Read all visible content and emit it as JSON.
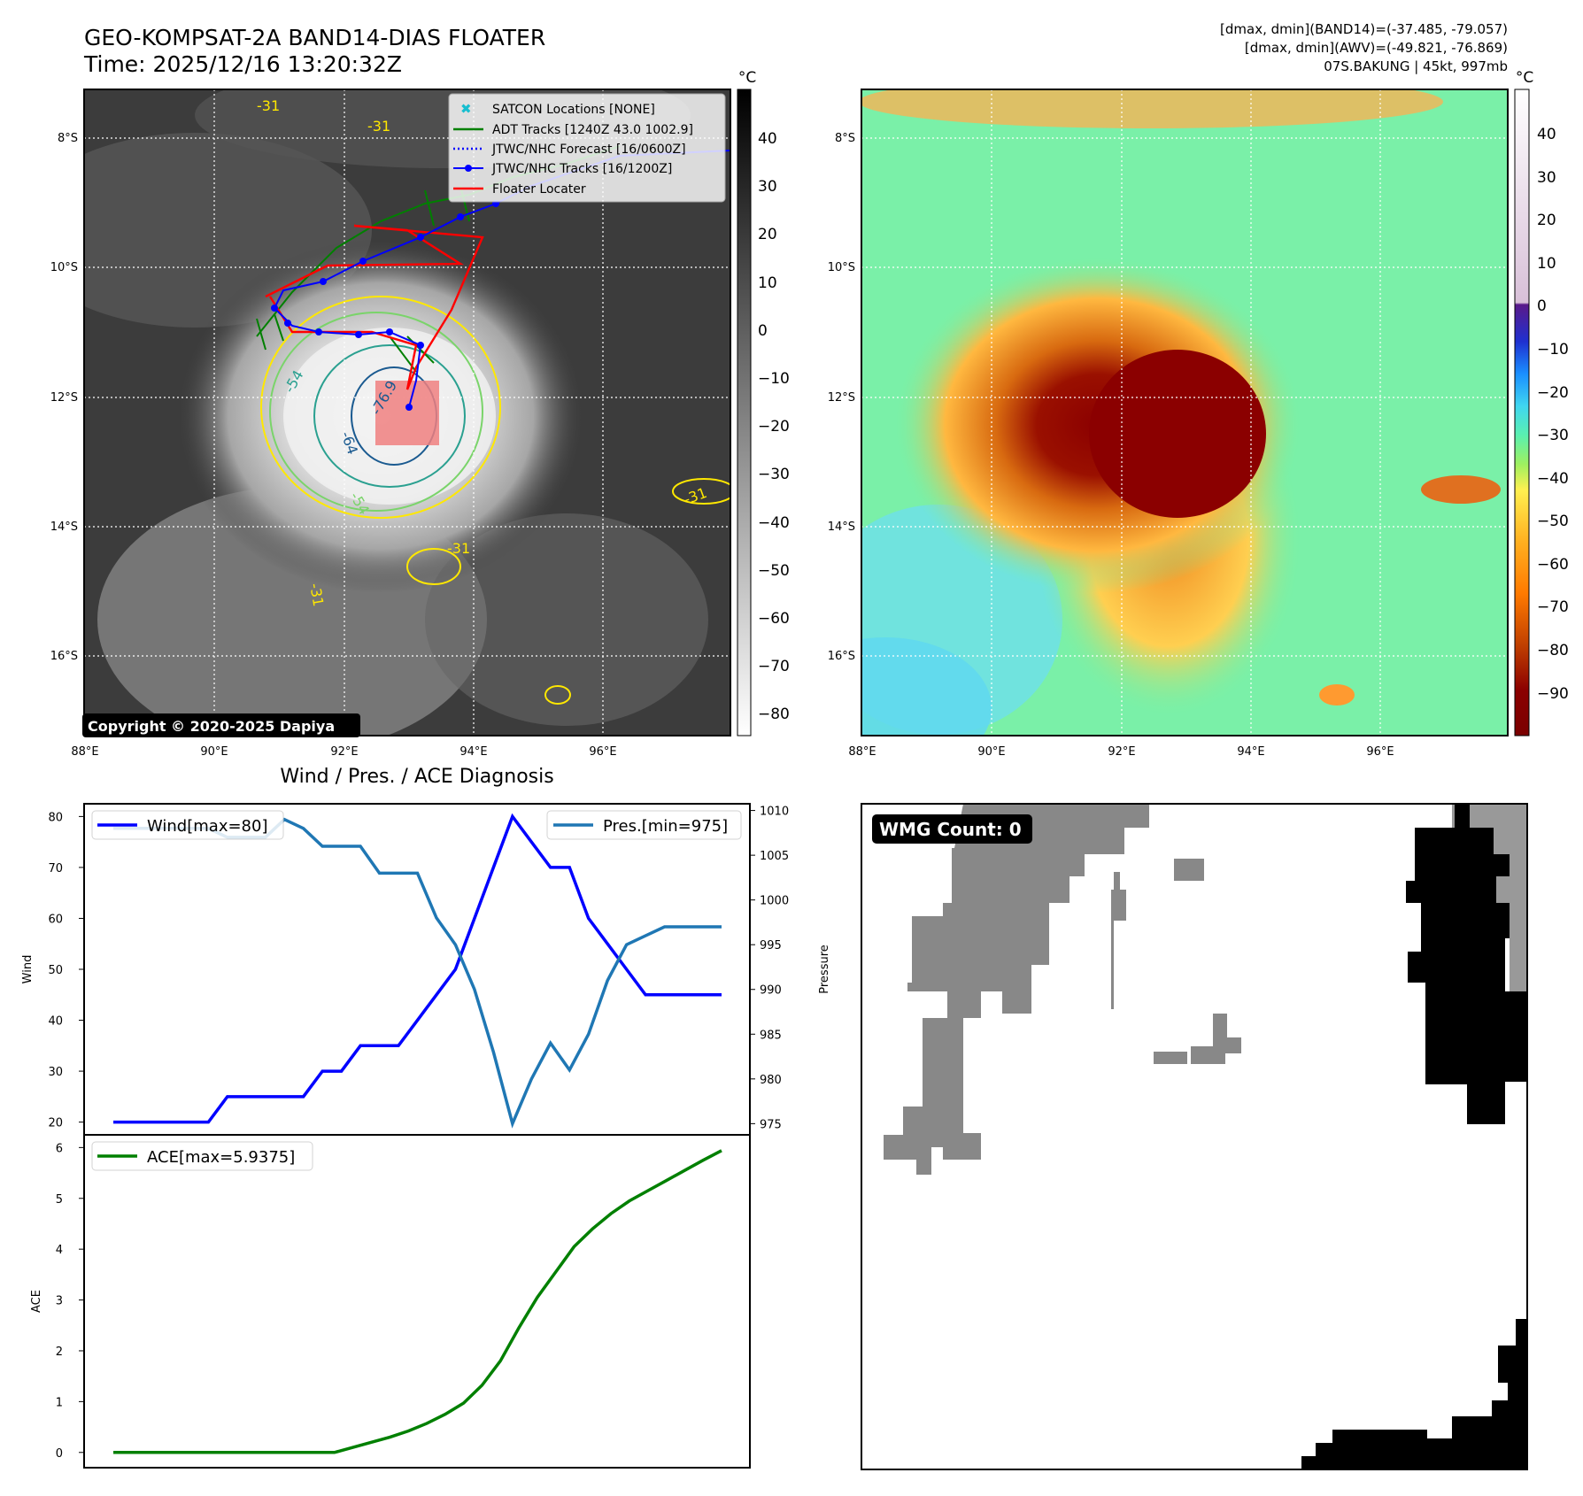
{
  "header": {
    "title_line1": "GEO-KOMPSAT-2A BAND14-DIAS FLOATER",
    "title_line2": "Time: 2025/12/16 13:20:32Z",
    "stats_band14": "[dmax, dmin](BAND14)=(-37.485, -79.057)",
    "stats_awv": "[dmax, dmin](AWV)=(-49.821, -76.869)",
    "storm": "07S.BAKUNG | 45kt, 997mb"
  },
  "ir_panel": {
    "unit": "°C",
    "lat_labels": [
      "8°S",
      "10°S",
      "12°S",
      "14°S",
      "16°S"
    ],
    "lon_labels": [
      "88°E",
      "90°E",
      "92°E",
      "94°E",
      "96°E"
    ],
    "colorbar_ticks": [
      "40",
      "30",
      "20",
      "10",
      "0",
      "−10",
      "−20",
      "−30",
      "−40",
      "−50",
      "−60",
      "−70",
      "−80"
    ],
    "copyright": "Copyright © 2020-2025 Dapiya",
    "contour_labels": [
      "-31",
      "-31",
      "-54",
      "-64",
      "-54",
      "-31",
      "-31",
      "-31",
      "-76.9"
    ],
    "legend": [
      {
        "label": "SATCON Locations [NONE]",
        "color": "#17becf"
      },
      {
        "label": "ADT Tracks [1240Z 43.0 1002.9]",
        "color": "#008000"
      },
      {
        "label": "JTWC/NHC Forecast [16/0600Z]",
        "color": "#0000ff"
      },
      {
        "label": "JTWC/NHC Tracks [16/1200Z]",
        "color": "#0000ff"
      },
      {
        "label": "Floater Locater",
        "color": "#ff0000"
      }
    ]
  },
  "color_panel": {
    "unit": "°C",
    "lat_labels": [
      "8°S",
      "10°S",
      "12°S",
      "14°S",
      "16°S"
    ],
    "lon_labels": [
      "88°E",
      "90°E",
      "92°E",
      "94°E",
      "96°E"
    ],
    "colorbar_ticks": [
      "40",
      "30",
      "20",
      "10",
      "0",
      "−10",
      "−20",
      "−30",
      "−40",
      "−50",
      "−60",
      "−70",
      "−80",
      "−90"
    ]
  },
  "wmg_panel": {
    "label": "WMG Count: 0"
  },
  "chart_data": [
    {
      "type": "line",
      "title": "Wind / Pres. / ACE Diagnosis",
      "xlabel": "",
      "ylabel": "Wind",
      "ylabel2": "Pressure",
      "ylim": [
        17.5,
        82.5
      ],
      "ylim2": [
        973.75,
        1010.75
      ],
      "y_ticks": [
        20,
        30,
        40,
        50,
        60,
        70,
        80
      ],
      "y2_ticks": [
        975,
        980,
        985,
        990,
        995,
        1000,
        1005,
        1010
      ],
      "series": [
        {
          "name": "Wind[max=80]",
          "axis": "left",
          "color": "#0000ff",
          "values": [
            20,
            20,
            20,
            20,
            20,
            20,
            25,
            25,
            25,
            25,
            25,
            30,
            30,
            35,
            35,
            35,
            40,
            45,
            50,
            60,
            70,
            80,
            75,
            70,
            70,
            60,
            55,
            50,
            45,
            45,
            45,
            45,
            45
          ]
        },
        {
          "name": "Pres.[min=975]",
          "axis": "right",
          "color": "#1f77b4",
          "values": [
            1008,
            1008,
            1008,
            1008,
            1008,
            1008,
            1007,
            1007,
            1007,
            1009,
            1008,
            1006,
            1006,
            1006,
            1003,
            1003,
            1003,
            998,
            995,
            990,
            983,
            975,
            980,
            984,
            981,
            985,
            991,
            995,
            996,
            997,
            997,
            997,
            997
          ]
        }
      ]
    },
    {
      "type": "line",
      "ylabel": "ACE",
      "ylim": [
        -0.3,
        6.25
      ],
      "y_ticks": [
        0,
        1,
        2,
        3,
        4,
        5,
        6
      ],
      "series": [
        {
          "name": "ACE[max=5.9375]",
          "color": "#008000",
          "values": [
            0,
            0,
            0,
            0,
            0,
            0,
            0,
            0,
            0,
            0,
            0,
            0,
            0,
            0.1,
            0.2,
            0.3,
            0.42,
            0.57,
            0.75,
            0.97,
            1.32,
            1.8,
            2.45,
            3.05,
            3.55,
            4.05,
            4.4,
            4.7,
            4.95,
            5.15,
            5.35,
            5.55,
            5.75,
            5.94
          ]
        }
      ]
    }
  ]
}
